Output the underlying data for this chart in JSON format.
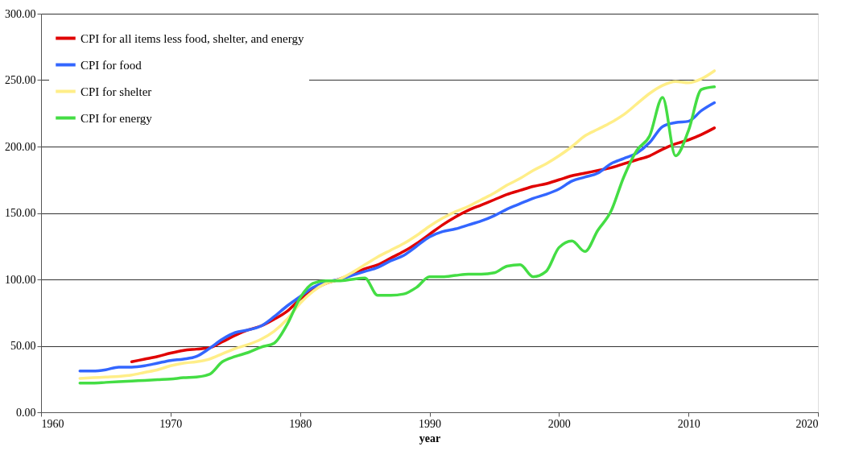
{
  "chart_data": {
    "type": "line",
    "xlabel": "year",
    "xlim": [
      1960,
      2020
    ],
    "xticks": [
      1960,
      1970,
      1980,
      1990,
      2000,
      2010,
      2020
    ],
    "ylim": [
      0,
      300
    ],
    "yticks": [
      {
        "value": 0,
        "label": "0.00"
      },
      {
        "value": 50,
        "label": "50.00"
      },
      {
        "value": 100,
        "label": "100.00"
      },
      {
        "value": 150,
        "label": "150.00"
      },
      {
        "value": 200,
        "label": "200.00"
      },
      {
        "value": 250,
        "label": "250.00"
      },
      {
        "value": 300,
        "label": "300.00"
      }
    ],
    "grid": "y",
    "legend": "top left",
    "marker": "none",
    "line_style": "solid",
    "x": [
      1963,
      1964,
      1965,
      1966,
      1967,
      1968,
      1969,
      1970,
      1971,
      1972,
      1973,
      1974,
      1975,
      1976,
      1977,
      1978,
      1979,
      1980,
      1981,
      1982,
      1983,
      1984,
      1985,
      1986,
      1987,
      1988,
      1989,
      1990,
      1991,
      1992,
      1993,
      1994,
      1995,
      1996,
      1997,
      1998,
      1999,
      2000,
      2001,
      2002,
      2003,
      2004,
      2005,
      2006,
      2007,
      2008,
      2009,
      2010,
      2011,
      2012
    ],
    "series": [
      {
        "name": "CPI for all items less food, shelter, and energy",
        "color": "#e00000",
        "values": [
          null,
          null,
          null,
          null,
          38,
          40,
          42,
          44.5,
          46.5,
          47.5,
          48.5,
          53,
          58,
          62,
          65,
          70,
          76,
          85,
          92,
          97,
          100,
          104,
          108,
          111,
          116,
          121,
          127,
          134,
          141,
          147,
          152,
          156,
          160,
          164,
          167,
          170,
          172,
          175,
          178,
          180,
          182,
          184,
          187,
          190,
          193,
          198,
          202,
          205,
          209,
          214
        ]
      },
      {
        "name": "CPI for food",
        "color": "#3366ff",
        "values": [
          31,
          31,
          32,
          34,
          34,
          35,
          37,
          39,
          40,
          42,
          48,
          55,
          60,
          62,
          65,
          72,
          80,
          87,
          94,
          98,
          100,
          103,
          106,
          109,
          114,
          118,
          125,
          132,
          136,
          138,
          141,
          144,
          148,
          153,
          157,
          161,
          164,
          168,
          174,
          177,
          180,
          187,
          191,
          195,
          203,
          215,
          218,
          219,
          227,
          233
        ]
      },
      {
        "name": "CPI for shelter",
        "color": "#ffee88",
        "values": [
          25.5,
          26,
          26.5,
          27,
          28,
          30,
          32,
          35,
          37,
          38,
          40,
          44,
          48,
          51,
          55,
          61,
          70,
          82,
          91,
          97,
          100,
          105,
          111,
          117,
          122,
          127,
          133,
          140,
          146,
          151,
          155,
          160,
          165,
          171,
          176,
          182,
          187,
          193,
          200,
          208,
          213,
          218,
          224,
          232,
          240,
          246,
          249,
          248,
          251,
          257
        ]
      },
      {
        "name": "CPI for energy",
        "color": "#44dd44",
        "values": [
          22,
          22,
          22.5,
          23,
          23.5,
          24,
          24.5,
          25,
          26,
          26.5,
          28.5,
          38,
          42,
          45,
          49,
          52,
          66,
          86,
          97,
          99,
          99,
          100,
          101,
          88,
          88,
          89,
          94,
          102,
          102,
          103,
          104,
          104,
          105,
          110,
          111,
          102,
          106,
          124,
          129,
          121,
          137,
          151,
          177,
          197,
          208,
          237,
          193,
          212,
          243,
          245
        ]
      }
    ]
  }
}
